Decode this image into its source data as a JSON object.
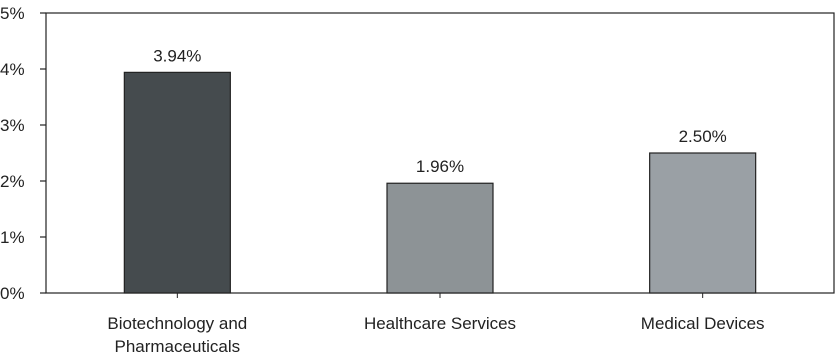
{
  "chart_data": {
    "type": "bar",
    "categories": [
      [
        "Biotechnology and",
        "Pharmaceuticals"
      ],
      [
        "Healthcare Services"
      ],
      [
        "Medical Devices"
      ]
    ],
    "values": [
      3.94,
      1.96,
      2.5
    ],
    "data_labels": [
      "3.94%",
      "1.96%",
      "2.50%"
    ],
    "bar_colors": [
      "#454b4e",
      "#8d9396",
      "#9aa0a5"
    ],
    "title": "",
    "xlabel": "",
    "ylabel": "",
    "ylim": [
      0,
      5
    ],
    "yticks": [
      0,
      1,
      2,
      3,
      4,
      5
    ],
    "ytick_labels": [
      "0%",
      "1%",
      "2%",
      "3%",
      "4%",
      "5%"
    ],
    "grid": false,
    "legend": "none"
  }
}
